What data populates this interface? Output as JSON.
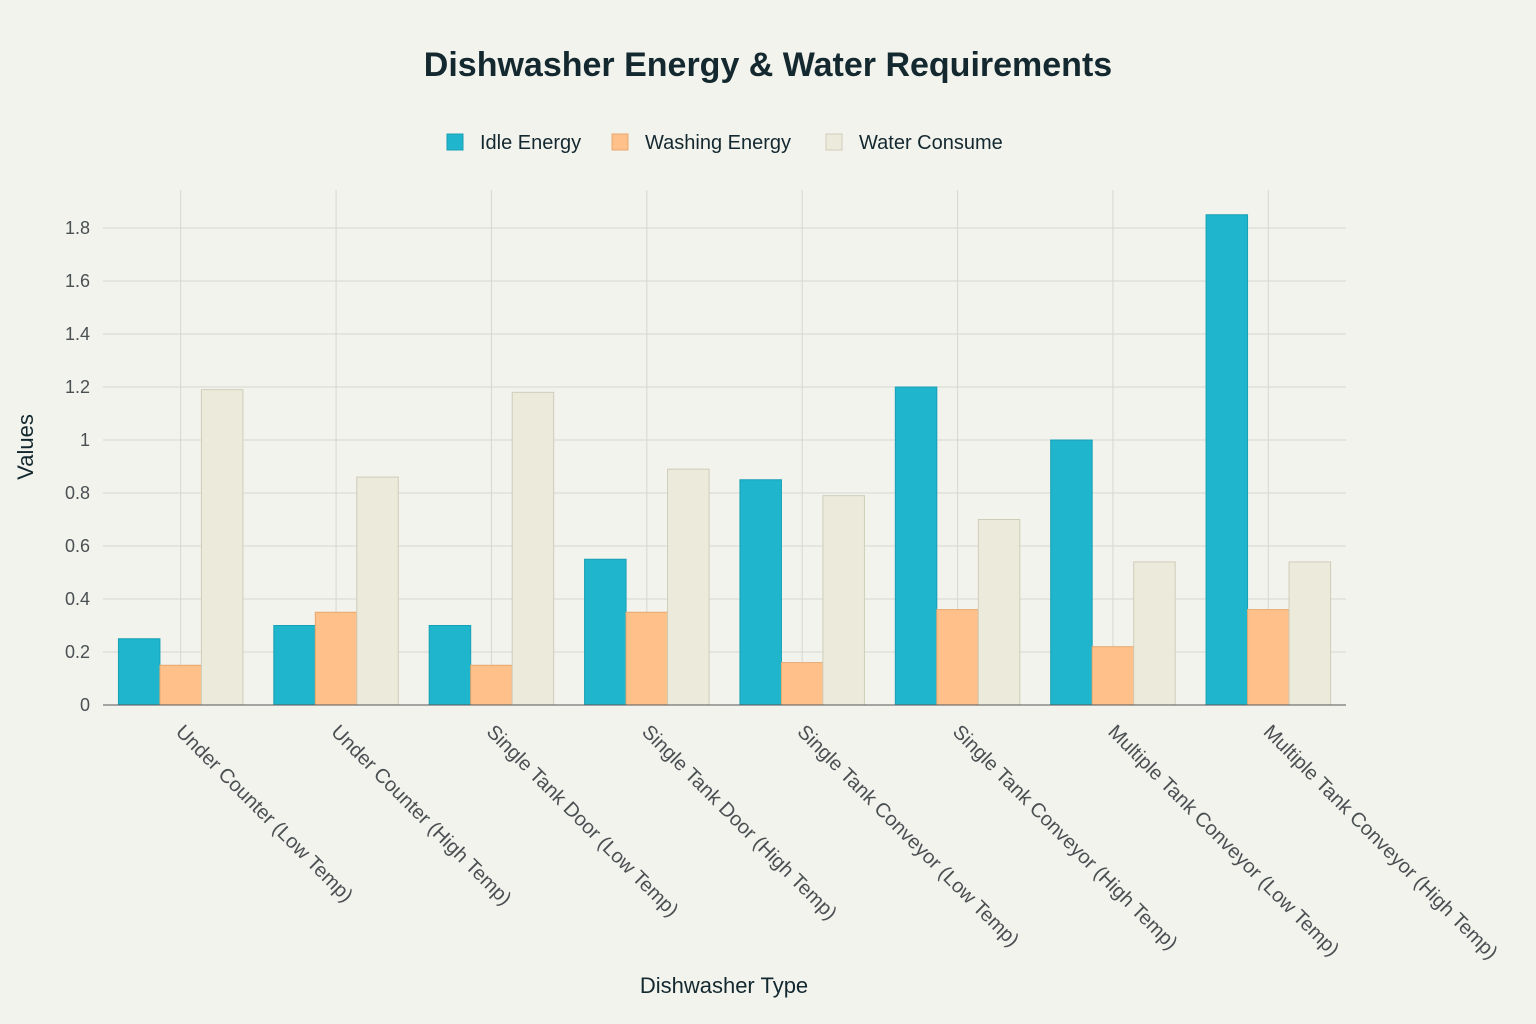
{
  "chart_data": {
    "type": "bar",
    "title": "Dishwasher Energy & Water Requirements",
    "xlabel": "Dishwasher Type",
    "ylabel": "Values",
    "ylim": [
      0,
      1.95
    ],
    "yticks": [
      0,
      0.2,
      0.4,
      0.6,
      0.8,
      1,
      1.2,
      1.4,
      1.6,
      1.8
    ],
    "ytick_labels": [
      "0",
      "0.2",
      "0.4",
      "0.6",
      "0.8",
      "1",
      "1.2",
      "1.4",
      "1.6",
      "1.8"
    ],
    "grid": true,
    "legend_position": "top-center",
    "categories": [
      "Under Counter (Low Temp)",
      "Under Counter (High Temp)",
      "Single Tank Door (Low Temp)",
      "Single Tank Door (High Temp)",
      "Single Tank Conveyor (Low Temp)",
      "Single Tank Conveyor (High Temp)",
      "Multiple Tank Conveyor (Low Temp)",
      "Multiple Tank Conveyor (High Temp)"
    ],
    "series": [
      {
        "name": "Idle Energy",
        "color": "#1fb5cc",
        "stroke": "#17a0b5",
        "values": [
          0.25,
          0.3,
          0.3,
          0.55,
          0.85,
          1.2,
          1.0,
          1.85
        ]
      },
      {
        "name": "Washing Energy",
        "color": "#ffc08a",
        "stroke": "#e8a870",
        "values": [
          0.15,
          0.35,
          0.15,
          0.35,
          0.16,
          0.36,
          0.22,
          0.36
        ]
      },
      {
        "name": "Water Consume",
        "color": "#eceadb",
        "stroke": "#cfcdb8",
        "values": [
          1.19,
          0.86,
          1.18,
          0.89,
          0.79,
          0.7,
          0.54,
          0.54
        ]
      }
    ]
  }
}
